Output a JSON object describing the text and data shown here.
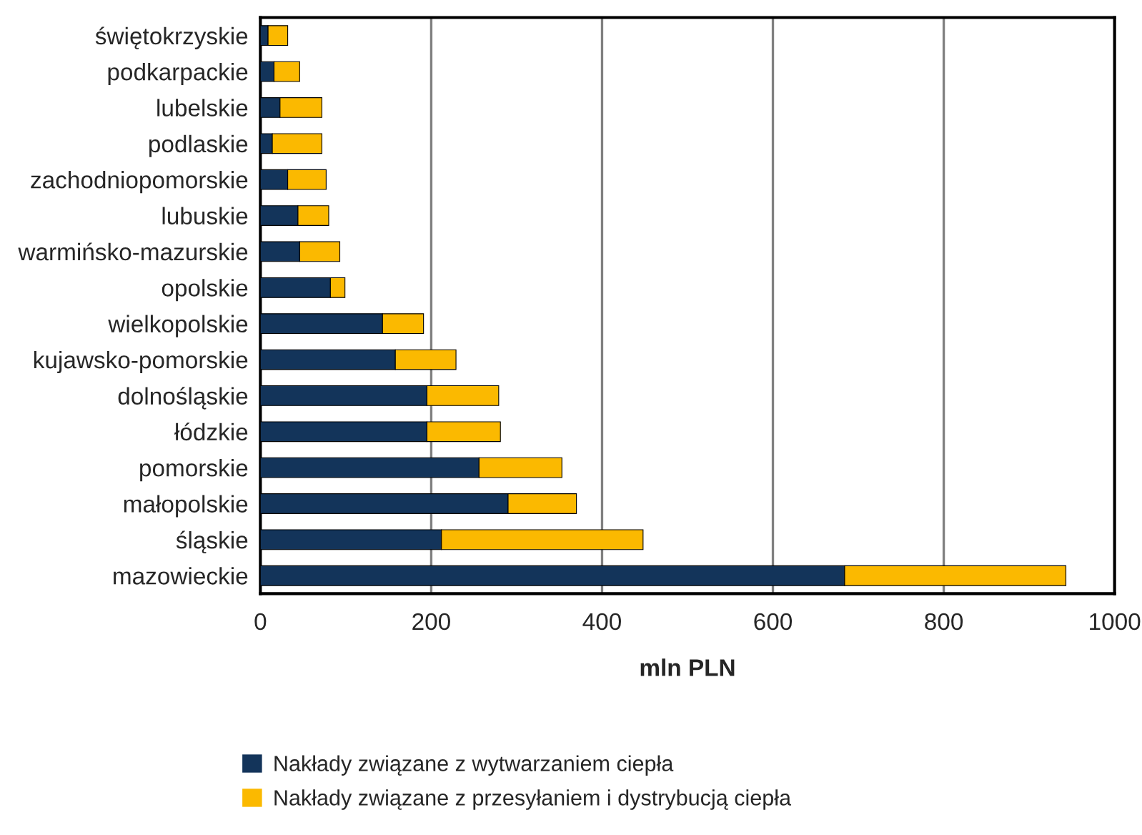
{
  "chart_data": {
    "type": "bar",
    "orientation": "horizontal",
    "stacked": true,
    "xlabel": "mln PLN",
    "categories": [
      "świętokrzyskie",
      "podkarpackie",
      "lubelskie",
      "podlaskie",
      "zachodniopomorskie",
      "lubuskie",
      "warmińsko-mazurskie",
      "opolskie",
      "wielkopolskie",
      "kujawsko-pomorskie",
      "dolnośląskie",
      "łódzkie",
      "pomorskie",
      "małopolskie",
      "śląskie",
      "mazowieckie"
    ],
    "series": [
      {
        "name": "Nakłady związane z wytwarzaniem ciepła",
        "color": "#13345a",
        "values": [
          9,
          16,
          23,
          14,
          32,
          44,
          46,
          82,
          143,
          158,
          195,
          195,
          256,
          290,
          212,
          684
        ]
      },
      {
        "name": "Nakłady związane z przesyłaniem i dystrybucją ciepła",
        "color": "#fbb900",
        "values": [
          23,
          30,
          49,
          58,
          45,
          36,
          47,
          17,
          48,
          71,
          84,
          86,
          97,
          80,
          236,
          259
        ]
      }
    ],
    "xlim": [
      0,
      1000
    ],
    "xticks": [
      0,
      200,
      400,
      600,
      800,
      1000
    ],
    "grid": "x",
    "legend": "bottom"
  }
}
